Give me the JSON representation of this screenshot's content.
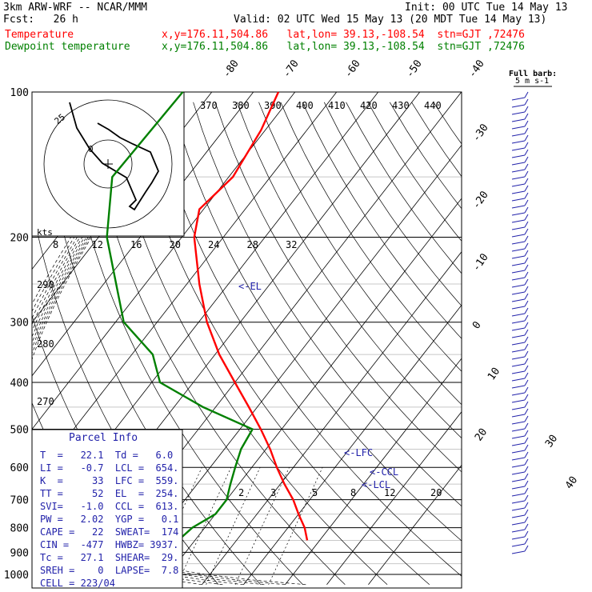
{
  "header": {
    "model": "3km ARW-WRF -- NCAR/MMM",
    "forecast": "Fcst:   26 h",
    "init": "Init: 00 UTC Tue 14 May 13",
    "valid": "Valid: 02 UTC Wed 15 May 13 (20 MDT Tue 14 May 13)",
    "temp_label": "Temperature",
    "dew_label": "Dewpoint temperature",
    "loc_line": "x,y=176.11,504.86   lat,lon= 39.13,-108.54  stn=GJT ,72476",
    "temp_color": "#ff0000",
    "dew_color": "#008000"
  },
  "chart_data": {
    "type": "line",
    "y_axis": "pressure (hPa), log scale",
    "pressure_ticks": [
      "100",
      "200",
      "300",
      "400",
      "500",
      "600",
      "700",
      "800",
      "900",
      "1000"
    ],
    "isotherm_labels": [
      "-80",
      "-70",
      "-60",
      "-50",
      "-40",
      "-30",
      "-20",
      "-10",
      "0",
      "10",
      "20",
      "30",
      "40"
    ],
    "theta_labels": [
      "370",
      "380",
      "390",
      "400",
      "410",
      "420",
      "430",
      "440"
    ],
    "theta_e_labels": [
      "290",
      "280",
      "270"
    ],
    "mixing_ratio_labels": [
      "2",
      "3",
      "5",
      "8",
      "12",
      "20"
    ],
    "wind_scale_labels": [
      "8",
      "12",
      "16",
      "20",
      "24",
      "28",
      "32"
    ],
    "series": [
      {
        "name": "Temperature",
        "color": "#ff0000",
        "points": [
          [
            100,
            -64
          ],
          [
            120,
            -61
          ],
          [
            150,
            -59
          ],
          [
            175,
            -61
          ],
          [
            200,
            -57
          ],
          [
            250,
            -47
          ],
          [
            300,
            -38
          ],
          [
            350,
            -29
          ],
          [
            400,
            -20
          ],
          [
            450,
            -12
          ],
          [
            500,
            -5
          ],
          [
            550,
            1
          ],
          [
            600,
            6
          ],
          [
            650,
            11
          ],
          [
            700,
            16
          ],
          [
            750,
            20
          ],
          [
            800,
            24
          ],
          [
            850,
            27
          ]
        ]
      },
      {
        "name": "Dewpoint temperature",
        "color": "#008000",
        "points": [
          [
            100,
            -87
          ],
          [
            150,
            -88
          ],
          [
            200,
            -78
          ],
          [
            250,
            -67
          ],
          [
            300,
            -58
          ],
          [
            350,
            -45
          ],
          [
            400,
            -38
          ],
          [
            450,
            -23
          ],
          [
            500,
            -7
          ],
          [
            550,
            -6
          ],
          [
            600,
            -4
          ],
          [
            650,
            -2
          ],
          [
            700,
            0
          ],
          [
            750,
            0
          ],
          [
            800,
            -3
          ],
          [
            850,
            -4
          ]
        ]
      }
    ],
    "annotations": [
      "<-EL",
      "<-LFC",
      "<-CCL",
      "<-LCL"
    ],
    "barb_title": "Full barb:",
    "barb_unit": "5 m s-1",
    "hodograph": {
      "unit": "kts",
      "ring_label_inner": "0",
      "ring_label_outer": "25"
    }
  },
  "parcel": {
    "title": "Parcel Info",
    "rows": [
      "T  =   22.1  Td =   6.0",
      "LI =   -0.7  LCL =  654.",
      "K  =     33  LFC =  559.",
      "TT =     52  EL  =  254.",
      "SVI=   -1.0  CCL =  613.",
      "PW =   2.02  YGP =   0.1",
      "CAPE =   22  SWEAT=  174",
      "CIN =  -477  HWBZ= 3937.",
      "Tc =   27.1  SHEAR=  29.",
      "SREH =    0  LAPSE=  7.8",
      "CELL = 223/04"
    ]
  }
}
